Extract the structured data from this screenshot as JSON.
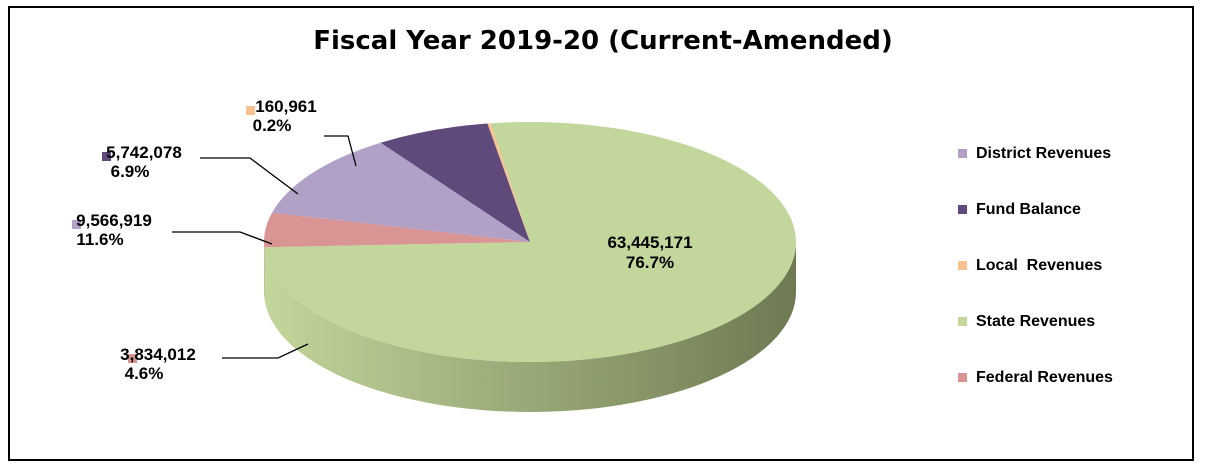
{
  "chart_data": {
    "type": "pie",
    "title": "Fiscal Year 2019-20 (Current-Amended)",
    "slices": [
      {
        "name": "State Revenues",
        "value": 63445171,
        "value_label": "63,445,171",
        "pct_label": "76.7%",
        "color": "#c3d69b",
        "side": "#6e7a52"
      },
      {
        "name": "Federal Revenues",
        "value": 3834012,
        "value_label": "3,834,012",
        "pct_label": "4.6%",
        "color": "#d99594",
        "side": "#a56b6a"
      },
      {
        "name": "District Revenues",
        "value": 9566919,
        "value_label": "9,566,919",
        "pct_label": "11.6%",
        "color": "#b2a1c7",
        "side": "#7f6f94"
      },
      {
        "name": "Fund Balance",
        "value": 5742078,
        "value_label": "5,742,078",
        "pct_label": "6.9%",
        "color": "#604a7b",
        "side": "#3d2d52"
      },
      {
        "name": "Local  Revenues",
        "value": 160961,
        "value_label": "160,961",
        "pct_label": "0.2%",
        "color": "#fac090",
        "side": "#c89060"
      }
    ],
    "legend": [
      {
        "name": "District Revenues",
        "color": "#b2a1c7"
      },
      {
        "name": "Fund Balance",
        "color": "#604a7b"
      },
      {
        "name": "Local  Revenues",
        "color": "#fac090"
      },
      {
        "name": "State Revenues",
        "color": "#c3d69b"
      },
      {
        "name": "Federal Revenues",
        "color": "#d99594"
      }
    ],
    "legend_position": "right"
  }
}
